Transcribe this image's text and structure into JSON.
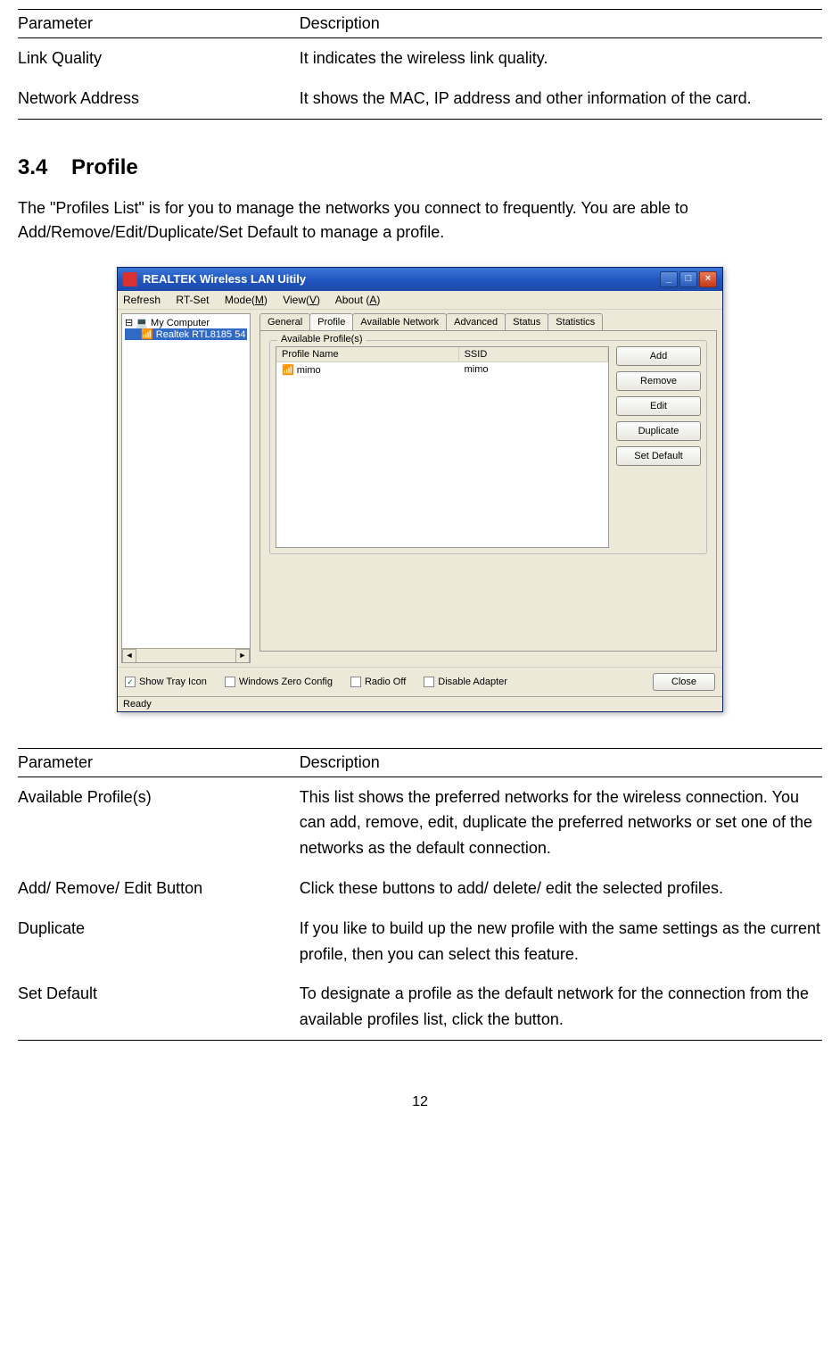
{
  "table1": {
    "headers": {
      "param": "Parameter",
      "desc": "Description"
    },
    "rows": [
      {
        "param": "Link Quality",
        "desc": "It indicates the wireless link quality."
      },
      {
        "param": "Network Address",
        "desc": "It shows the MAC, IP address and other information of the card."
      }
    ]
  },
  "section": {
    "number": "3.4",
    "title": "Profile",
    "body": "The \"Profiles List\" is for you to manage the networks you connect to frequently. You are able to Add/Remove/Edit/Duplicate/Set Default to manage a profile."
  },
  "screenshot": {
    "window_title": "REALTEK Wireless LAN Uitily",
    "menu": {
      "refresh": "Refresh",
      "rtset": "RT-Set",
      "mode": "Mode(M)",
      "view": "View(V)",
      "about": "About (A)"
    },
    "tree": {
      "root": "My Computer",
      "child": "Realtek RTL8185 54"
    },
    "tabs": {
      "general": "General",
      "profile": "Profile",
      "available": "Available Network",
      "advanced": "Advanced",
      "status": "Status",
      "statistics": "Statistics"
    },
    "group_label": "Available Profile(s)",
    "list_headers": {
      "name": "Profile Name",
      "ssid": "SSID"
    },
    "list_row": {
      "name": "mimo",
      "ssid": "mimo"
    },
    "buttons": {
      "add": "Add",
      "remove": "Remove",
      "edit": "Edit",
      "duplicate": "Duplicate",
      "set_default": "Set Default"
    },
    "checkboxes": {
      "tray": "Show Tray Icon",
      "zero": "Windows Zero Config",
      "radio": "Radio Off",
      "disable": "Disable Adapter"
    },
    "close": "Close",
    "status": "Ready",
    "colors": {
      "titlebar_start": "#3b77d8",
      "titlebar_end": "#1d4aaa",
      "body_bg": "#ece9d8",
      "selection": "#316ac5"
    }
  },
  "table2": {
    "headers": {
      "param": "Parameter",
      "desc": "Description"
    },
    "rows": [
      {
        "param": "Available Profile(s)",
        "desc": "This list shows the preferred networks for the wireless connection. You can add, remove, edit, duplicate the preferred networks or set one of the networks as the default connection."
      },
      {
        "param": "Add/ Remove/ Edit Button",
        "desc": "Click these buttons to add/ delete/ edit the selected profiles."
      },
      {
        "param": "Duplicate",
        "desc": "If you like to build up the new profile with the same settings as the current profile, then you can select this feature."
      },
      {
        "param": "Set Default",
        "desc": "To designate a profile as the default network for the connection from the available profiles list, click the button."
      }
    ]
  },
  "page_number": "12"
}
